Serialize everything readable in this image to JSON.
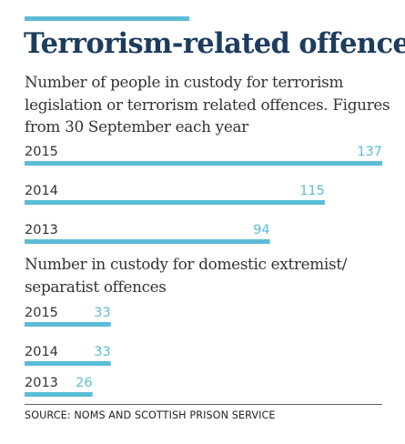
{
  "title": "Terrorism-related offences",
  "colors": {
    "bar": "#5bbcd6",
    "title": "#1d3c5e",
    "text": "#333333"
  },
  "source": "SOURCE: NOMS AND SCOTTISH PRISON SERVICE",
  "chart_data": [
    {
      "type": "bar",
      "orientation": "horizontal",
      "title": "Number of people in custody for terrorism legislation or terrorism related offences. Figures from 30 September each year",
      "categories": [
        "2015",
        "2014",
        "2013"
      ],
      "values": [
        137,
        115,
        94
      ],
      "xlim": [
        0,
        137
      ],
      "grid": false,
      "legend": "none"
    },
    {
      "type": "bar",
      "orientation": "horizontal",
      "title": "Number in custody for domestic extremist/ separatist offences",
      "categories": [
        "2015",
        "2014",
        "2013"
      ],
      "values": [
        33,
        33,
        26
      ],
      "xlim": [
        0,
        137
      ],
      "grid": false,
      "legend": "none"
    }
  ]
}
